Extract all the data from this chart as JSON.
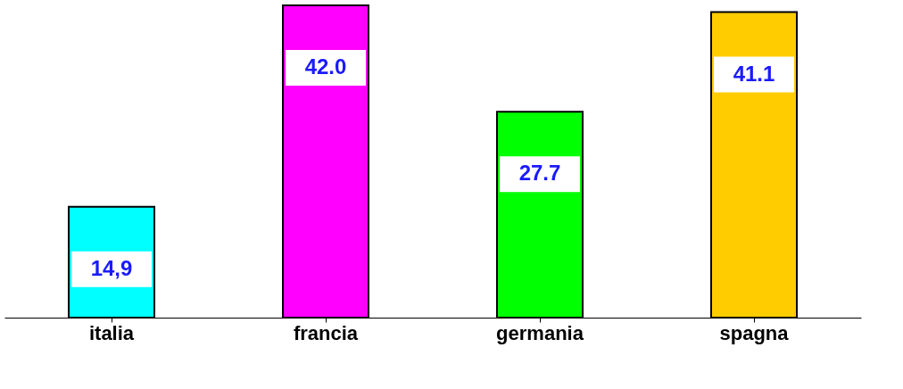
{
  "chart_data": {
    "type": "bar",
    "categories": [
      "italia",
      "francia",
      "germania",
      "spagna"
    ],
    "values": [
      14.9,
      42.0,
      27.7,
      41.1
    ],
    "colors": [
      "#00ffff",
      "#ff00ff",
      "#00ff00",
      "#ffcc00"
    ],
    "value_labels": [
      "14,9",
      "42.0",
      "27.7",
      "41.1"
    ],
    "grid": false
  }
}
